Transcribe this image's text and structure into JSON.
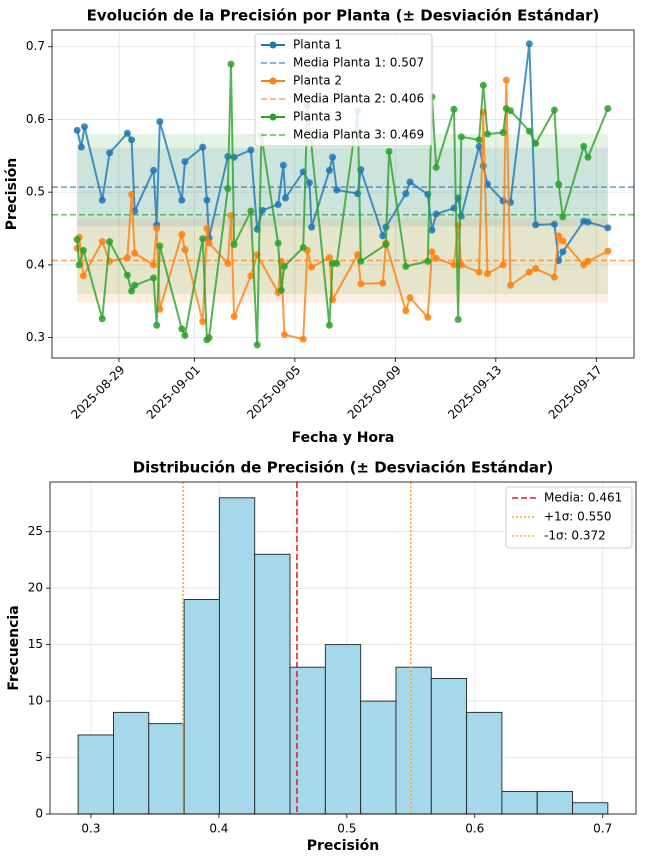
{
  "chart_data": [
    {
      "type": "line",
      "title": "Evolución de la Precisión por Planta (± Desviación Estándar)",
      "xlabel": "Fecha y Hora",
      "ylabel": "Precisión",
      "xlim": [
        "2025-08-26 08:00",
        "2025-09-18 12:00"
      ],
      "xticks": [
        "2025-08-29",
        "2025-09-01",
        "2025-09-05",
        "2025-09-09",
        "2025-09-13",
        "2025-09-17"
      ],
      "ylim": [
        0.272,
        0.723
      ],
      "yticks": [
        0.3,
        0.4,
        0.5,
        0.6,
        0.7
      ],
      "grid": true,
      "legend": "upper center",
      "series": [
        {
          "name": "Planta 1",
          "color": "#1f77b4",
          "x": [
            "2025-08-27 08:00",
            "2025-08-27 12:00",
            "2025-08-27 15:00",
            "2025-08-28 08:00",
            "2025-08-28 15:00",
            "2025-08-29 08:00",
            "2025-08-29 12:00",
            "2025-08-29 15:00",
            "2025-08-30 09:00",
            "2025-08-30 12:00",
            "2025-08-30 15:00",
            "2025-08-31 12:00",
            "2025-08-31 15:00",
            "2025-09-01 08:00",
            "2025-09-01 12:00",
            "2025-09-01 14:00",
            "2025-09-02 08:00",
            "2025-09-02 14:00",
            "2025-09-03 06:00",
            "2025-09-03 12:00",
            "2025-09-03 17:00",
            "2025-09-04 08:00",
            "2025-09-04 13:00",
            "2025-09-04 15:00",
            "2025-09-05 08:00",
            "2025-09-05 14:00",
            "2025-09-05 16:00",
            "2025-09-06 09:00",
            "2025-09-06 12:00",
            "2025-09-06 16:00",
            "2025-09-07 12:00",
            "2025-09-07 15:00",
            "2025-09-08 12:00",
            "2025-09-08 15:00",
            "2025-09-09 10:00",
            "2025-09-09 14:00",
            "2025-09-10 07:00",
            "2025-09-10 11:00",
            "2025-09-10 15:00",
            "2025-09-11 08:00",
            "2025-09-11 12:00",
            "2025-09-11 15:00",
            "2025-09-12 08:00",
            "2025-09-12 12:00",
            "2025-09-12 16:00",
            "2025-09-13 07:00",
            "2025-09-13 14:00",
            "2025-09-14 08:00",
            "2025-09-14 14:00",
            "2025-09-15 08:00",
            "2025-09-15 12:00",
            "2025-09-15 16:00",
            "2025-09-16 12:00",
            "2025-09-16 16:00",
            "2025-09-17 11:00"
          ],
          "values": [
            0.585,
            0.562,
            0.59,
            0.489,
            0.554,
            0.581,
            0.572,
            0.474,
            0.53,
            0.455,
            0.597,
            0.489,
            0.542,
            0.562,
            0.489,
            0.437,
            0.549,
            0.548,
            0.558,
            0.449,
            0.475,
            0.483,
            0.537,
            0.492,
            0.528,
            0.513,
            0.452,
            0.53,
            0.548,
            0.503,
            0.498,
            0.531,
            0.44,
            0.452,
            0.498,
            0.514,
            0.497,
            0.448,
            0.47,
            0.478,
            0.492,
            0.467,
            0.563,
            0.536,
            0.511,
            0.488,
            0.486,
            0.704,
            0.455,
            0.456,
            0.406,
            0.418,
            0.46,
            0.459,
            0.451
          ]
        },
        {
          "name": "Planta 2",
          "color": "#ff7f0e",
          "x": [
            "2025-08-27 08:00",
            "2025-08-27 10:00",
            "2025-08-27 14:00",
            "2025-08-28 08:00",
            "2025-08-28 15:00",
            "2025-08-29 08:00",
            "2025-08-29 12:00",
            "2025-08-29 15:00",
            "2025-08-30 09:00",
            "2025-08-30 12:00",
            "2025-08-30 15:00",
            "2025-08-31 12:00",
            "2025-08-31 15:00",
            "2025-09-01 08:00",
            "2025-09-01 12:00",
            "2025-09-01 14:00",
            "2025-09-02 08:00",
            "2025-09-02 11:00",
            "2025-09-02 14:00",
            "2025-09-03 06:00",
            "2025-09-03 12:00",
            "2025-09-04 08:00",
            "2025-09-04 11:00",
            "2025-09-04 14:00",
            "2025-09-05 08:00",
            "2025-09-05 12:00",
            "2025-09-05 16:00",
            "2025-09-06 09:00",
            "2025-09-06 12:00",
            "2025-09-07 12:00",
            "2025-09-07 15:00",
            "2025-09-08 12:00",
            "2025-09-08 15:00",
            "2025-09-09 10:00",
            "2025-09-09 14:00",
            "2025-09-10 07:00",
            "2025-09-10 11:00",
            "2025-09-10 15:00",
            "2025-09-11 08:00",
            "2025-09-11 12:00",
            "2025-09-11 15:00",
            "2025-09-12 08:00",
            "2025-09-12 12:00",
            "2025-09-12 16:00",
            "2025-09-13 07:00",
            "2025-09-13 10:00",
            "2025-09-13 14:00",
            "2025-09-14 08:00",
            "2025-09-14 14:00",
            "2025-09-15 08:00",
            "2025-09-15 12:00",
            "2025-09-15 16:00",
            "2025-09-16 12:00",
            "2025-09-16 16:00",
            "2025-09-17 11:00"
          ],
          "values": [
            0.423,
            0.438,
            0.385,
            0.432,
            0.405,
            0.41,
            0.497,
            0.416,
            0.4,
            0.45,
            0.339,
            0.442,
            0.421,
            0.322,
            0.45,
            0.43,
            0.402,
            0.468,
            0.329,
            0.385,
            0.414,
            0.362,
            0.405,
            0.304,
            0.298,
            0.42,
            0.397,
            0.41,
            0.352,
            0.414,
            0.374,
            0.375,
            0.43,
            0.337,
            0.355,
            0.328,
            0.418,
            0.409,
            0.4,
            0.455,
            0.4,
            0.39,
            0.61,
            0.388,
            0.4,
            0.654,
            0.372,
            0.39,
            0.395,
            0.383,
            0.44,
            0.433,
            0.4,
            0.405,
            0.419
          ]
        },
        {
          "name": "Planta 3",
          "color": "#2ca02c",
          "x": [
            "2025-08-27 08:00",
            "2025-08-27 10:00",
            "2025-08-27 14:00",
            "2025-08-28 08:00",
            "2025-08-28 15:00",
            "2025-08-29 08:00",
            "2025-08-29 12:00",
            "2025-08-29 15:00",
            "2025-08-30 09:00",
            "2025-08-30 12:00",
            "2025-08-30 15:00",
            "2025-08-31 12:00",
            "2025-08-31 15:00",
            "2025-09-01 08:00",
            "2025-09-01 12:00",
            "2025-09-01 14:00",
            "2025-09-02 08:00",
            "2025-09-02 11:00",
            "2025-09-02 14:00",
            "2025-09-03 06:00",
            "2025-09-03 12:00",
            "2025-09-03 16:00",
            "2025-09-04 08:00",
            "2025-09-04 11:00",
            "2025-09-04 14:00",
            "2025-09-05 08:00",
            "2025-09-05 12:00",
            "2025-09-06 09:00",
            "2025-09-06 12:00",
            "2025-09-06 16:00",
            "2025-09-07 12:00",
            "2025-09-07 15:00",
            "2025-09-08 15:00",
            "2025-09-08 18:00",
            "2025-09-09 10:00",
            "2025-09-10 07:00",
            "2025-09-10 11:00",
            "2025-09-10 15:00",
            "2025-09-11 08:00",
            "2025-09-11 12:00",
            "2025-09-11 15:00",
            "2025-09-12 08:00",
            "2025-09-12 12:00",
            "2025-09-12 16:00",
            "2025-09-13 07:00",
            "2025-09-13 10:00",
            "2025-09-13 14:00",
            "2025-09-14 08:00",
            "2025-09-14 14:00",
            "2025-09-15 08:00",
            "2025-09-15 12:00",
            "2025-09-15 16:00",
            "2025-09-16 12:00",
            "2025-09-16 16:00",
            "2025-09-17 11:00"
          ],
          "values": [
            0.435,
            0.4,
            0.42,
            0.326,
            0.432,
            0.386,
            0.364,
            0.372,
            0.382,
            0.317,
            0.426,
            0.312,
            0.303,
            0.436,
            0.297,
            0.3,
            0.505,
            0.676,
            0.428,
            0.474,
            0.29,
            0.578,
            0.43,
            0.365,
            0.398,
            0.424,
            0.62,
            0.317,
            0.402,
            0.402,
            0.612,
            0.405,
            0.428,
            0.556,
            0.398,
            0.405,
            0.631,
            0.534,
            0.614,
            0.325,
            0.576,
            0.572,
            0.647,
            0.58,
            0.582,
            0.615,
            0.612,
            0.584,
            0.567,
            0.613,
            0.511,
            0.466,
            0.563,
            0.548,
            0.615
          ]
        }
      ],
      "mean_lines": [
        {
          "name": "Media Planta 1: 0.507",
          "value": 0.507,
          "color": "#1f77b4",
          "band": [
            0.453,
            0.561
          ]
        },
        {
          "name": "Media Planta 2: 0.406",
          "value": 0.406,
          "color": "#ff7f0e",
          "band": [
            0.348,
            0.464
          ]
        },
        {
          "name": "Media Planta 3: 0.469",
          "value": 0.469,
          "color": "#2ca02c",
          "band": [
            0.36,
            0.58
          ]
        }
      ]
    },
    {
      "type": "histogram",
      "title": "Distribución de Precisión (± Desviación Estándar)",
      "xlabel": "Precisión",
      "ylabel": "Frecuencia",
      "xlim": [
        0.268,
        0.726
      ],
      "xticks": [
        0.3,
        0.4,
        0.5,
        0.6,
        0.7
      ],
      "ylim": [
        0,
        29.4
      ],
      "yticks": [
        0,
        5,
        10,
        15,
        20,
        25
      ],
      "grid": true,
      "legend": "upper right",
      "color": "#a6d8ec",
      "bins": [
        0.29,
        0.3176,
        0.3452,
        0.3728,
        0.4004,
        0.428,
        0.4556,
        0.4832,
        0.5108,
        0.5384,
        0.566,
        0.5936,
        0.6212,
        0.6488,
        0.6764,
        0.704
      ],
      "values": [
        7,
        9,
        8,
        19,
        28,
        23,
        13,
        15,
        10,
        13,
        12,
        9,
        2,
        2,
        1
      ],
      "vlines": [
        {
          "name": "Media: 0.461",
          "value": 0.461,
          "color": "#e41a1c",
          "style": "dashed"
        },
        {
          "name": "+1σ: 0.550",
          "value": 0.55,
          "color": "#f5a623",
          "style": "dotted"
        },
        {
          "name": "-1σ: 0.372",
          "value": 0.372,
          "color": "#f5a623",
          "style": "dotted"
        }
      ]
    }
  ]
}
